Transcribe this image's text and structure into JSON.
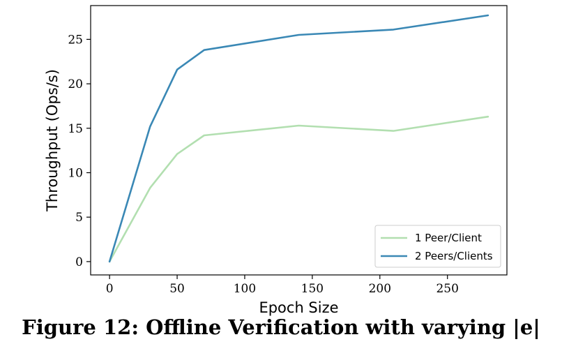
{
  "figure_caption": "Figure 12: Offline Verification with varying |e|",
  "chart_data": {
    "type": "line",
    "title": "",
    "xlabel": "Epoch Size",
    "ylabel": "Throughput (Ops/s)",
    "xlim": [
      -14,
      294
    ],
    "ylim": [
      -1.5,
      28.8
    ],
    "xticks": [
      0,
      50,
      100,
      150,
      200,
      250
    ],
    "yticks": [
      0,
      5,
      10,
      15,
      20,
      25
    ],
    "grid": false,
    "legend_position": "lower-right",
    "series": [
      {
        "name": "1 Peer/Client",
        "color": "#b2dfb0",
        "x": [
          0,
          30,
          50,
          70,
          140,
          210,
          280
        ],
        "y": [
          0,
          8.3,
          12.1,
          14.2,
          15.3,
          14.7,
          16.3
        ]
      },
      {
        "name": "2 Peers/Clients",
        "color": "#3a88b5",
        "x": [
          0,
          30,
          50,
          70,
          140,
          210,
          280
        ],
        "y": [
          0,
          15.2,
          21.6,
          23.8,
          25.5,
          26.1,
          27.7
        ]
      }
    ]
  }
}
